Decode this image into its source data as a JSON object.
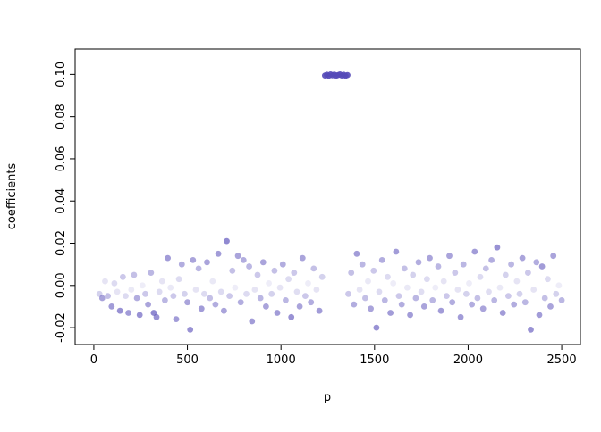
{
  "chart_data": {
    "type": "scatter",
    "title": "",
    "xlabel": "p",
    "ylabel": "coefficients",
    "xlim": [
      -100,
      2600
    ],
    "ylim": [
      -0.028,
      0.112
    ],
    "x_ticks": [
      0,
      500,
      1000,
      1500,
      2000,
      2500
    ],
    "x_tick_labels": [
      "0",
      "500",
      "1000",
      "1500",
      "2000",
      "2500"
    ],
    "y_ticks": [
      -0.02,
      0.0,
      0.02,
      0.04,
      0.06,
      0.08,
      0.1
    ],
    "y_tick_labels": [
      "-0.02",
      "0.00",
      "0.02",
      "0.04",
      "0.06",
      "0.08",
      "0.10"
    ],
    "grid": false,
    "legend": "none",
    "point_color": "#554ab8",
    "point_radius": 3.4,
    "annotation": "dense cluster of dark points at y ~ 0.10 between p ~ 1230 and p ~ 1360; all other coefficients scattered between -0.021 and 0.021 with varying opacity",
    "points": [
      [
        30,
        -0.004,
        0.25
      ],
      [
        45,
        -0.006,
        0.5
      ],
      [
        60,
        0.002,
        0.15
      ],
      [
        75,
        -0.005,
        0.35
      ],
      [
        95,
        -0.01,
        0.55
      ],
      [
        110,
        0.001,
        0.2
      ],
      [
        125,
        -0.003,
        0.15
      ],
      [
        140,
        -0.012,
        0.6
      ],
      [
        155,
        0.004,
        0.3
      ],
      [
        170,
        -0.005,
        0.2
      ],
      [
        185,
        -0.013,
        0.55
      ],
      [
        200,
        -0.002,
        0.12
      ],
      [
        215,
        0.005,
        0.35
      ],
      [
        230,
        -0.006,
        0.45
      ],
      [
        245,
        -0.014,
        0.6
      ],
      [
        260,
        0.0,
        0.1
      ],
      [
        275,
        -0.004,
        0.3
      ],
      [
        290,
        -0.009,
        0.5
      ],
      [
        305,
        0.006,
        0.4
      ],
      [
        320,
        -0.013,
        0.65
      ],
      [
        335,
        -0.015,
        0.6
      ],
      [
        350,
        -0.003,
        0.2
      ],
      [
        365,
        0.002,
        0.15
      ],
      [
        380,
        -0.007,
        0.4
      ],
      [
        395,
        0.013,
        0.55
      ],
      [
        410,
        -0.001,
        0.12
      ],
      [
        425,
        -0.005,
        0.3
      ],
      [
        440,
        -0.016,
        0.55
      ],
      [
        455,
        0.003,
        0.2
      ],
      [
        470,
        0.01,
        0.45
      ],
      [
        485,
        -0.004,
        0.25
      ],
      [
        500,
        -0.008,
        0.5
      ],
      [
        515,
        -0.021,
        0.6
      ],
      [
        530,
        0.012,
        0.5
      ],
      [
        545,
        -0.002,
        0.15
      ],
      [
        560,
        0.008,
        0.4
      ],
      [
        575,
        -0.011,
        0.55
      ],
      [
        590,
        -0.004,
        0.2
      ],
      [
        605,
        0.011,
        0.5
      ],
      [
        620,
        -0.006,
        0.35
      ],
      [
        635,
        0.002,
        0.12
      ],
      [
        650,
        -0.009,
        0.45
      ],
      [
        665,
        0.015,
        0.55
      ],
      [
        680,
        -0.003,
        0.2
      ],
      [
        695,
        -0.012,
        0.5
      ],
      [
        710,
        0.021,
        0.65
      ],
      [
        725,
        -0.005,
        0.3
      ],
      [
        740,
        0.007,
        0.35
      ],
      [
        755,
        -0.001,
        0.1
      ],
      [
        770,
        0.014,
        0.5
      ],
      [
        785,
        -0.008,
        0.45
      ],
      [
        800,
        0.012,
        0.45
      ],
      [
        815,
        -0.004,
        0.2
      ],
      [
        830,
        0.009,
        0.4
      ],
      [
        845,
        -0.017,
        0.55
      ],
      [
        860,
        -0.002,
        0.15
      ],
      [
        875,
        0.005,
        0.3
      ],
      [
        890,
        -0.006,
        0.4
      ],
      [
        905,
        0.011,
        0.5
      ],
      [
        920,
        -0.01,
        0.5
      ],
      [
        935,
        0.001,
        0.1
      ],
      [
        950,
        -0.004,
        0.25
      ],
      [
        965,
        0.007,
        0.35
      ],
      [
        980,
        -0.013,
        0.55
      ],
      [
        995,
        -0.001,
        0.15
      ],
      [
        1010,
        0.01,
        0.45
      ],
      [
        1025,
        -0.007,
        0.4
      ],
      [
        1040,
        0.003,
        0.2
      ],
      [
        1055,
        -0.015,
        0.6
      ],
      [
        1070,
        0.006,
        0.3
      ],
      [
        1085,
        -0.003,
        0.18
      ],
      [
        1100,
        -0.01,
        0.5
      ],
      [
        1115,
        0.013,
        0.5
      ],
      [
        1130,
        -0.005,
        0.3
      ],
      [
        1145,
        0.001,
        0.1
      ],
      [
        1160,
        -0.008,
        0.45
      ],
      [
        1175,
        0.008,
        0.35
      ],
      [
        1190,
        -0.002,
        0.15
      ],
      [
        1205,
        -0.012,
        0.55
      ],
      [
        1220,
        0.004,
        0.25
      ],
      [
        1235,
        0.0995,
        0.9
      ],
      [
        1245,
        0.0998,
        0.9
      ],
      [
        1255,
        0.0993,
        0.9
      ],
      [
        1265,
        0.1,
        0.9
      ],
      [
        1275,
        0.0996,
        0.9
      ],
      [
        1285,
        0.0999,
        0.9
      ],
      [
        1295,
        0.0994,
        0.9
      ],
      [
        1305,
        0.0997,
        0.9
      ],
      [
        1315,
        0.1,
        0.9
      ],
      [
        1325,
        0.0995,
        0.9
      ],
      [
        1335,
        0.0998,
        0.9
      ],
      [
        1345,
        0.0993,
        0.9
      ],
      [
        1355,
        0.0997,
        0.9
      ],
      [
        1360,
        -0.004,
        0.3
      ],
      [
        1375,
        0.006,
        0.35
      ],
      [
        1390,
        -0.009,
        0.45
      ],
      [
        1405,
        0.015,
        0.55
      ],
      [
        1420,
        -0.002,
        0.15
      ],
      [
        1435,
        0.01,
        0.4
      ],
      [
        1450,
        -0.006,
        0.35
      ],
      [
        1465,
        0.002,
        0.12
      ],
      [
        1480,
        -0.011,
        0.5
      ],
      [
        1495,
        0.007,
        0.3
      ],
      [
        1510,
        -0.02,
        0.6
      ],
      [
        1525,
        -0.003,
        0.2
      ],
      [
        1540,
        0.012,
        0.45
      ],
      [
        1555,
        -0.007,
        0.4
      ],
      [
        1570,
        0.004,
        0.2
      ],
      [
        1585,
        -0.013,
        0.55
      ],
      [
        1600,
        0.001,
        0.1
      ],
      [
        1615,
        0.016,
        0.55
      ],
      [
        1630,
        -0.005,
        0.3
      ],
      [
        1645,
        -0.009,
        0.45
      ],
      [
        1660,
        0.008,
        0.35
      ],
      [
        1675,
        -0.001,
        0.12
      ],
      [
        1690,
        -0.014,
        0.55
      ],
      [
        1705,
        0.005,
        0.25
      ],
      [
        1720,
        -0.006,
        0.4
      ],
      [
        1735,
        0.011,
        0.45
      ],
      [
        1750,
        -0.003,
        0.18
      ],
      [
        1765,
        -0.01,
        0.5
      ],
      [
        1780,
        0.003,
        0.2
      ],
      [
        1795,
        0.013,
        0.5
      ],
      [
        1810,
        -0.007,
        0.4
      ],
      [
        1825,
        -0.001,
        0.1
      ],
      [
        1840,
        0.009,
        0.4
      ],
      [
        1855,
        -0.012,
        0.55
      ],
      [
        1870,
        0.002,
        0.15
      ],
      [
        1885,
        -0.005,
        0.3
      ],
      [
        1900,
        0.014,
        0.5
      ],
      [
        1915,
        -0.008,
        0.45
      ],
      [
        1930,
        0.006,
        0.3
      ],
      [
        1945,
        -0.002,
        0.15
      ],
      [
        1960,
        -0.015,
        0.55
      ],
      [
        1975,
        0.01,
        0.4
      ],
      [
        1990,
        -0.004,
        0.25
      ],
      [
        2005,
        0.001,
        0.1
      ],
      [
        2020,
        -0.009,
        0.45
      ],
      [
        2035,
        0.016,
        0.55
      ],
      [
        2050,
        -0.006,
        0.35
      ],
      [
        2065,
        0.004,
        0.2
      ],
      [
        2080,
        -0.011,
        0.5
      ],
      [
        2095,
        0.008,
        0.35
      ],
      [
        2110,
        -0.003,
        0.18
      ],
      [
        2125,
        0.012,
        0.45
      ],
      [
        2140,
        -0.007,
        0.4
      ],
      [
        2155,
        0.018,
        0.6
      ],
      [
        2170,
        -0.001,
        0.12
      ],
      [
        2185,
        -0.013,
        0.55
      ],
      [
        2200,
        0.005,
        0.25
      ],
      [
        2215,
        -0.005,
        0.3
      ],
      [
        2230,
        0.01,
        0.4
      ],
      [
        2245,
        -0.009,
        0.45
      ],
      [
        2260,
        0.002,
        0.15
      ],
      [
        2275,
        -0.004,
        0.25
      ],
      [
        2290,
        0.013,
        0.5
      ],
      [
        2305,
        -0.008,
        0.4
      ],
      [
        2320,
        0.006,
        0.3
      ],
      [
        2335,
        -0.021,
        0.6
      ],
      [
        2350,
        -0.002,
        0.15
      ],
      [
        2365,
        0.011,
        0.45
      ],
      [
        2380,
        -0.014,
        0.55
      ],
      [
        2395,
        0.009,
        0.55
      ],
      [
        2410,
        -0.006,
        0.35
      ],
      [
        2425,
        0.003,
        0.2
      ],
      [
        2440,
        -0.01,
        0.5
      ],
      [
        2455,
        0.014,
        0.5
      ],
      [
        2470,
        -0.004,
        0.25
      ],
      [
        2485,
        0.0,
        0.1
      ],
      [
        2500,
        -0.007,
        0.4
      ]
    ]
  },
  "figure": {
    "background": "#ffffff",
    "box_color": "#000000"
  }
}
